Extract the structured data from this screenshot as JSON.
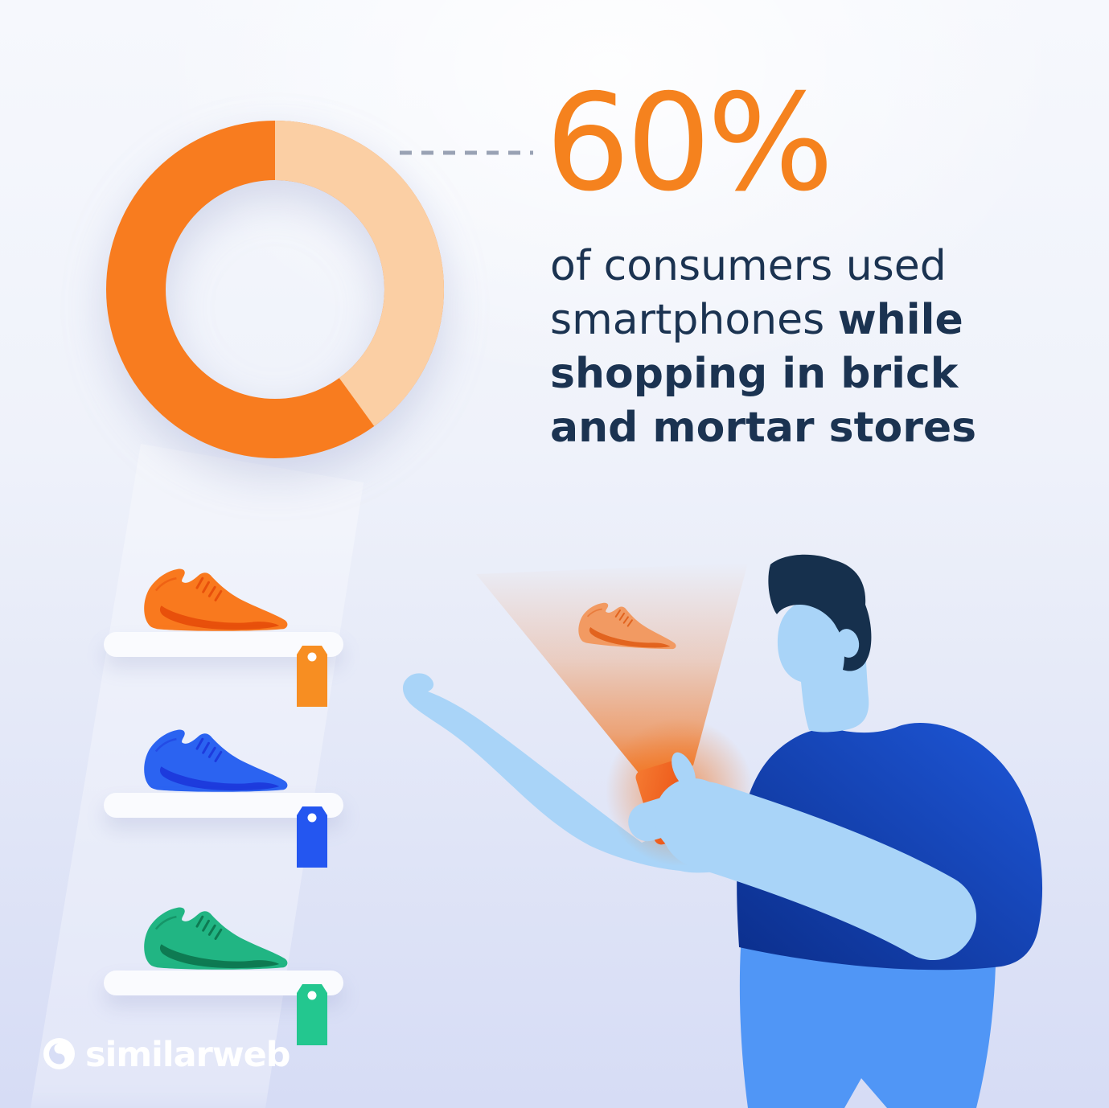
{
  "stat": {
    "value": "60%",
    "color": "#F5821E"
  },
  "description": {
    "color": "#1B3351",
    "lines": [
      [
        {
          "text": "of consumers used",
          "bold": false
        }
      ],
      [
        {
          "text": "smartphones ",
          "bold": false
        },
        {
          "text": "while",
          "bold": true
        }
      ],
      [
        {
          "text": "shopping in brick",
          "bold": true
        }
      ],
      [
        {
          "text": "and mortar stores",
          "bold": true
        }
      ]
    ]
  },
  "chart_data": {
    "type": "pie",
    "variant": "donut",
    "title": "60% of consumers used smartphones while shopping in brick and mortar stores",
    "segments": [
      {
        "label": "consumers who used smartphones while shopping in-store",
        "value": 60,
        "color": "#F87C1F"
      },
      {
        "label": "remaining consumers",
        "value": 40,
        "color": "#FBCFA4"
      }
    ],
    "legend": false,
    "start_angle_deg": 0,
    "callout": {
      "target_text": "60%",
      "dash_color": "#99A2B4"
    }
  },
  "shelves": {
    "shelf_color": "#FAFBFE",
    "items": [
      {
        "name": "orange sneaker",
        "shoe_body": "#F9791E",
        "shoe_detail": "#E8500B",
        "tag_color": "#F78E22"
      },
      {
        "name": "blue sneaker",
        "shoe_body": "#2B63F1",
        "shoe_detail": "#1D3BDD",
        "tag_color": "#2456F0"
      },
      {
        "name": "green sneaker",
        "shoe_body": "#21B583",
        "shoe_detail": "#0E7A52",
        "tag_color": "#23C78F"
      }
    ]
  },
  "person": {
    "skin": "#A9D4F8",
    "hair": "#16304D",
    "shirt_gradient": [
      "#1E57D8",
      "#0B2E8B"
    ],
    "pants": "#5096F6",
    "phone_gradient": [
      "#F57B32",
      "#E8430A"
    ],
    "beam_color": "#F2741F",
    "hologram_shoe_body": "#F29A62",
    "hologram_shoe_detail": "#E2641F"
  },
  "brand": {
    "name": "similarweb",
    "logo_color": "#FFFFFF"
  }
}
